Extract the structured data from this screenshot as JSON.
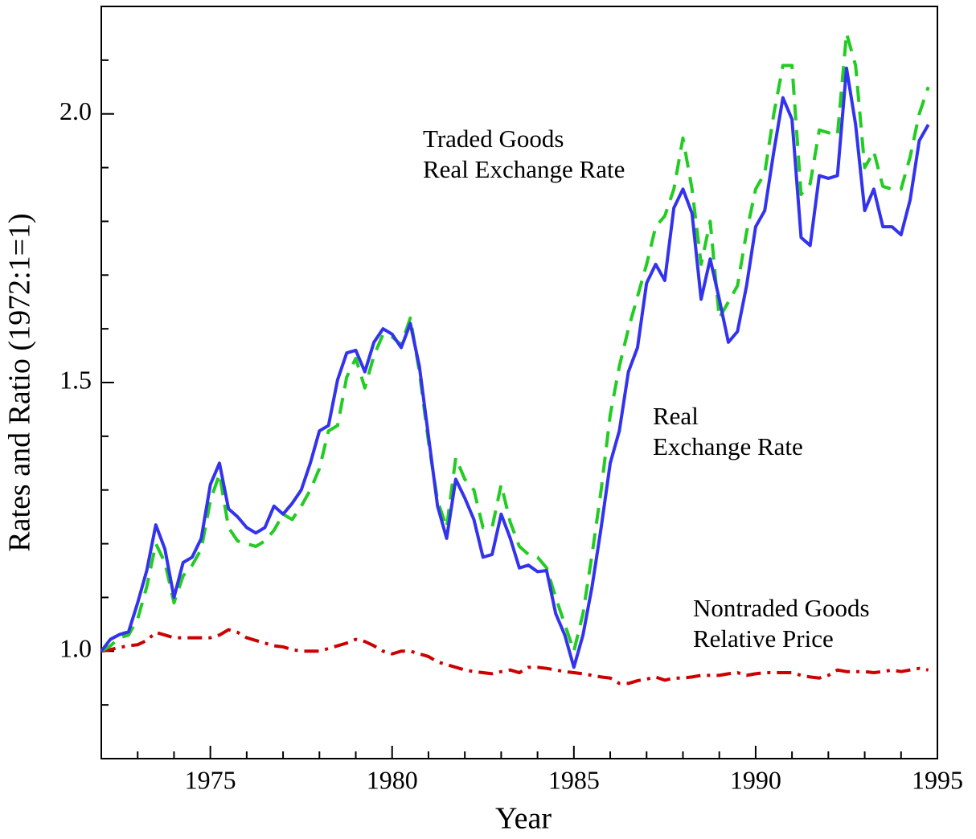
{
  "chart_data": {
    "type": "line",
    "xlabel": "Year",
    "ylabel": "Rates and Ratio (1972:1=1)",
    "xlim": [
      1972,
      1995
    ],
    "ylim": [
      0.8,
      2.2
    ],
    "xticks": [
      1975,
      1980,
      1985,
      1990,
      1995
    ],
    "yticks": [
      {
        "value": 1,
        "label": "1.0"
      },
      {
        "value": 1.5,
        "label": "1.5"
      },
      {
        "value": 2,
        "label": "2.0"
      }
    ],
    "xminorticks": [
      1973,
      1974,
      1976,
      1977,
      1978,
      1979,
      1981,
      1982,
      1983,
      1984,
      1986,
      1987,
      1988,
      1989,
      1991,
      1992,
      1993,
      1994
    ],
    "yminorticks": [
      0.9,
      1.1,
      1.2,
      1.3,
      1.4,
      1.6,
      1.7,
      1.8,
      1.9,
      2.1
    ],
    "grid": false,
    "x": [
      1972,
      1972.25,
      1972.5,
      1972.75,
      1973,
      1973.25,
      1973.5,
      1973.75,
      1974,
      1974.25,
      1974.5,
      1974.75,
      1975,
      1975.25,
      1975.5,
      1975.75,
      1976,
      1976.25,
      1976.5,
      1976.75,
      1977,
      1977.25,
      1977.5,
      1977.75,
      1978,
      1978.25,
      1978.5,
      1978.75,
      1979,
      1979.25,
      1979.5,
      1979.75,
      1980,
      1980.25,
      1980.5,
      1980.75,
      1981,
      1981.25,
      1981.5,
      1981.75,
      1982,
      1982.25,
      1982.5,
      1982.75,
      1983,
      1983.25,
      1983.5,
      1983.75,
      1984,
      1984.25,
      1984.5,
      1984.75,
      1985,
      1985.25,
      1985.5,
      1985.75,
      1986,
      1986.25,
      1986.5,
      1986.75,
      1987,
      1987.25,
      1987.5,
      1987.75,
      1988,
      1988.25,
      1988.5,
      1988.75,
      1989,
      1989.25,
      1989.5,
      1989.75,
      1990,
      1990.25,
      1990.5,
      1990.75,
      1991,
      1991.25,
      1991.5,
      1991.75,
      1992,
      1992.25,
      1992.5,
      1992.75,
      1993,
      1993.25,
      1993.5,
      1993.75,
      1994,
      1994.25,
      1994.5,
      1994.75
    ],
    "series": [
      {
        "color": "#cc0000",
        "style": "dashdot",
        "values": [
          1.0,
          1.003,
          1.007,
          1.01,
          1.012,
          1.02,
          1.035,
          1.03,
          1.025,
          1.025,
          1.025,
          1.025,
          1.025,
          1.03,
          1.04,
          1.035,
          1.025,
          1.02,
          1.015,
          1.01,
          1.008,
          1.003,
          1.0,
          1.0,
          1.0,
          1.005,
          1.01,
          1.015,
          1.022,
          1.018,
          1.01,
          1.0,
          0.995,
          1.0,
          1.0,
          0.995,
          0.99,
          0.98,
          0.975,
          0.97,
          0.965,
          0.962,
          0.96,
          0.958,
          0.962,
          0.965,
          0.96,
          0.97,
          0.97,
          0.968,
          0.965,
          0.962,
          0.96,
          0.958,
          0.955,
          0.952,
          0.95,
          0.94,
          0.94,
          0.945,
          0.948,
          0.952,
          0.946,
          0.95,
          0.95,
          0.952,
          0.955,
          0.955,
          0.955,
          0.958,
          0.96,
          0.955,
          0.958,
          0.96,
          0.96,
          0.96,
          0.96,
          0.955,
          0.952,
          0.95,
          0.955,
          0.965,
          0.962,
          0.962,
          0.962,
          0.96,
          0.962,
          0.965,
          0.962,
          0.965,
          0.968,
          0.965
        ]
      },
      {
        "color": "#22cc22",
        "style": "dashed",
        "values": [
          1.0,
          1.01,
          1.025,
          1.03,
          1.06,
          1.12,
          1.2,
          1.165,
          1.09,
          1.14,
          1.16,
          1.19,
          1.28,
          1.33,
          1.23,
          1.205,
          1.2,
          1.195,
          1.205,
          1.225,
          1.255,
          1.245,
          1.27,
          1.3,
          1.34,
          1.41,
          1.42,
          1.51,
          1.545,
          1.49,
          1.55,
          1.59,
          1.585,
          1.57,
          1.62,
          1.52,
          1.39,
          1.28,
          1.23,
          1.36,
          1.32,
          1.3,
          1.23,
          1.23,
          1.31,
          1.24,
          1.195,
          1.18,
          1.175,
          1.155,
          1.1,
          1.05,
          1.0,
          1.07,
          1.18,
          1.3,
          1.44,
          1.53,
          1.6,
          1.66,
          1.72,
          1.79,
          1.81,
          1.86,
          1.955,
          1.86,
          1.72,
          1.8,
          1.62,
          1.65,
          1.68,
          1.78,
          1.86,
          1.89,
          2.0,
          2.09,
          2.09,
          1.85,
          1.87,
          1.97,
          1.965,
          1.96,
          2.15,
          2.09,
          1.9,
          1.93,
          1.865,
          1.86,
          1.86,
          1.92,
          2.0,
          2.05
        ]
      },
      {
        "color": "#3333ee",
        "style": "solid",
        "values": [
          1.0,
          1.022,
          1.031,
          1.036,
          1.09,
          1.15,
          1.235,
          1.19,
          1.1,
          1.165,
          1.175,
          1.21,
          1.31,
          1.35,
          1.265,
          1.25,
          1.23,
          1.22,
          1.23,
          1.27,
          1.255,
          1.275,
          1.3,
          1.35,
          1.41,
          1.42,
          1.505,
          1.555,
          1.56,
          1.52,
          1.575,
          1.6,
          1.59,
          1.565,
          1.61,
          1.53,
          1.4,
          1.27,
          1.21,
          1.32,
          1.285,
          1.245,
          1.175,
          1.18,
          1.255,
          1.21,
          1.155,
          1.16,
          1.148,
          1.15,
          1.07,
          1.03,
          0.97,
          1.03,
          1.12,
          1.23,
          1.35,
          1.41,
          1.52,
          1.565,
          1.685,
          1.72,
          1.69,
          1.825,
          1.86,
          1.815,
          1.655,
          1.73,
          1.655,
          1.575,
          1.595,
          1.68,
          1.79,
          1.82,
          1.93,
          2.03,
          1.99,
          1.77,
          1.755,
          1.885,
          1.88,
          1.885,
          2.085,
          1.98,
          1.82,
          1.86,
          1.79,
          1.79,
          1.775,
          1.84,
          1.95,
          1.98
        ]
      }
    ],
    "annotations": [
      {
        "lines": [
          "Traded Goods",
          "Real Exchange Rate"
        ]
      },
      {
        "lines": [
          "Real",
          "Exchange Rate"
        ]
      },
      {
        "lines": [
          "Nontraded Goods",
          "Relative Price"
        ]
      }
    ]
  }
}
